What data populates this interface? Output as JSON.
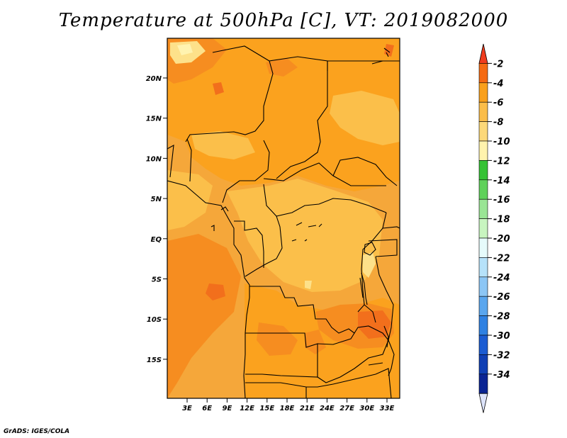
{
  "title": "Temperature at 500hPa [C], VT: 2019082000",
  "credit": "GrADS: IGES/COLA",
  "map": {
    "lat_labels": [
      "20N",
      "15N",
      "10N",
      "5N",
      "EQ",
      "5S",
      "10S",
      "15S"
    ],
    "lon_labels": [
      "3E",
      "6E",
      "9E",
      "12E",
      "15E",
      "18E",
      "21E",
      "24E",
      "27E",
      "30E",
      "33E"
    ],
    "field_colors": {
      "background": "#f5a73a",
      "dominant": "#fba21e",
      "warm": "#f68d20",
      "warmest": "#f26f1c",
      "cool": "#fbbf4a",
      "coolest": "#fde18a",
      "palest": "#fff3b0"
    }
  },
  "colorbar": {
    "labels": [
      "-2",
      "-4",
      "-6",
      "-8",
      "-10",
      "-12",
      "-14",
      "-16",
      "-18",
      "-20",
      "-22",
      "-24",
      "-26",
      "-28",
      "-30",
      "-32",
      "-34"
    ],
    "colors": [
      "#f03c1e",
      "#f56a12",
      "#f9a01c",
      "#fbbd4a",
      "#fcd879",
      "#fff3ad",
      "#35c234",
      "#5fd15a",
      "#9ae595",
      "#c8f5c0",
      "#e6fbfb",
      "#b6e2fa",
      "#8cc6f5",
      "#5aa6ee",
      "#2f81e2",
      "#1b5cd2",
      "#0f3fb4",
      "#0a2493",
      "#dde4fb"
    ]
  }
}
